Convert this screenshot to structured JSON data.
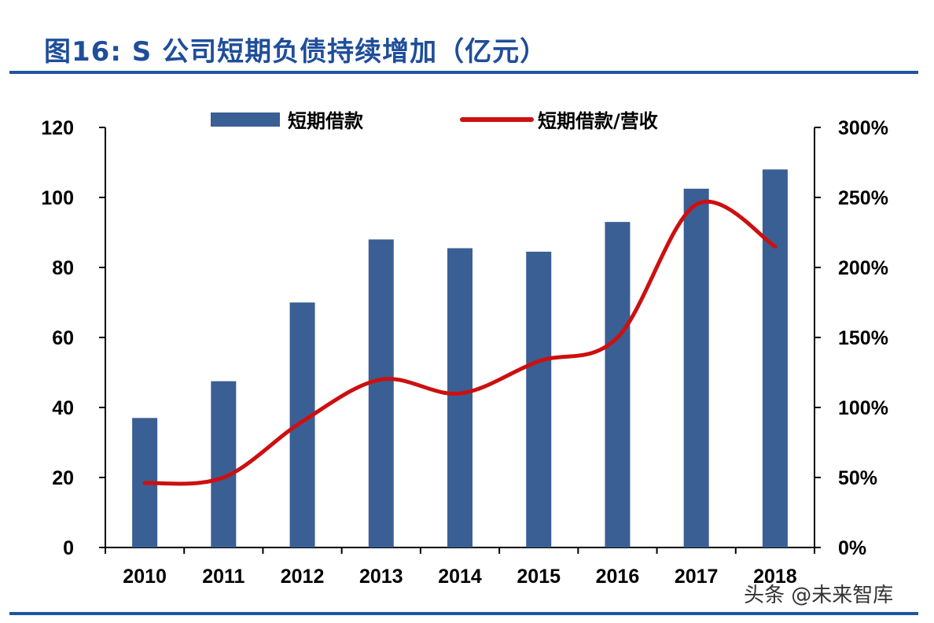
{
  "title": "图16: S 公司短期负债持续增加（亿元）",
  "watermark": "头条 @未来智库",
  "colors": {
    "bar": "#3a5f94",
    "line": "#cc1010",
    "title": "#1f4e9a",
    "rule": "#1f56a3"
  },
  "chart_data": {
    "type": "bar",
    "categories": [
      "2010",
      "2011",
      "2012",
      "2013",
      "2014",
      "2015",
      "2016",
      "2017",
      "2018"
    ],
    "series": [
      {
        "name": "短期借款",
        "type": "bar",
        "axis": "left",
        "values": [
          37,
          47.5,
          70,
          88,
          85.5,
          84.5,
          93,
          102.5,
          108
        ]
      },
      {
        "name": "短期借款/营收",
        "type": "line",
        "axis": "right",
        "unit": "%",
        "values": [
          46,
          50,
          90,
          120,
          110,
          133,
          150,
          245,
          215
        ]
      }
    ],
    "left_axis": {
      "ylim": [
        0,
        120
      ],
      "ticks": [
        "0",
        "20",
        "40",
        "60",
        "80",
        "100",
        "120"
      ]
    },
    "right_axis": {
      "ylim": [
        0,
        300
      ],
      "ticks": [
        "0%",
        "50%",
        "100%",
        "150%",
        "200%",
        "250%",
        "300%"
      ]
    },
    "legend_position": "top"
  }
}
